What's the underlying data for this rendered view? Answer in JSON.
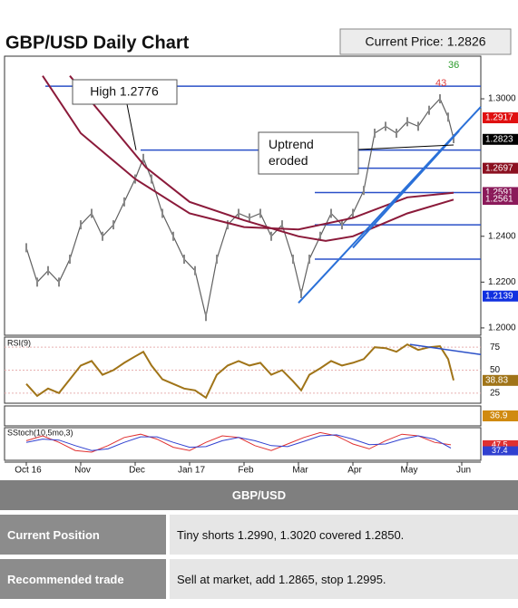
{
  "chart_data": {
    "type": "line",
    "title": "GBP/USD Daily Chart",
    "current_price_label": "Current Price: 1.2826",
    "xlim": [
      -0.4,
      8.35
    ],
    "xticks": [
      {
        "value": 0,
        "label": "Oct 16"
      },
      {
        "value": 1,
        "label": "Nov"
      },
      {
        "value": 2,
        "label": "Dec"
      },
      {
        "value": 3,
        "label": "Jan 17"
      },
      {
        "value": 4,
        "label": "Feb"
      },
      {
        "value": 5,
        "label": "Mar"
      },
      {
        "value": 6,
        "label": "Apr"
      },
      {
        "value": 7,
        "label": "May"
      },
      {
        "value": 8,
        "label": "Jun"
      }
    ],
    "ylim": [
      1.1968,
      1.3186
    ],
    "yticks": [
      {
        "value": 1.2,
        "label": "1.2000"
      },
      {
        "value": 1.22,
        "label": "1.2200"
      },
      {
        "value": 1.24,
        "label": "1.2400"
      },
      {
        "value": 1.3,
        "label": "1.3000"
      }
    ],
    "series": [
      {
        "color": "#606060",
        "x": [
          0,
          0.2,
          0.4,
          0.6,
          0.8,
          1.0,
          1.2,
          1.4,
          1.6,
          1.8,
          2.0,
          2.15,
          2.3,
          2.5,
          2.7,
          2.9,
          3.1,
          3.3,
          3.5,
          3.7,
          3.9,
          4.1,
          4.3,
          4.5,
          4.7,
          4.9,
          5.05,
          5.2,
          5.4,
          5.6,
          5.8,
          6.0,
          6.2,
          6.4,
          6.6,
          6.8,
          7.0,
          7.2,
          7.4,
          7.6,
          7.75,
          7.85
        ],
        "values": [
          1.235,
          1.22,
          1.225,
          1.22,
          1.23,
          1.245,
          1.25,
          1.24,
          1.245,
          1.255,
          1.265,
          1.274,
          1.265,
          1.25,
          1.24,
          1.23,
          1.225,
          1.205,
          1.23,
          1.245,
          1.25,
          1.248,
          1.25,
          1.24,
          1.245,
          1.23,
          1.215,
          1.23,
          1.24,
          1.25,
          1.245,
          1.25,
          1.26,
          1.285,
          1.288,
          1.285,
          1.29,
          1.288,
          1.295,
          1.3,
          1.292,
          1.2826
        ]
      },
      {
        "color": "#8b1a3a",
        "x": [
          0.3,
          1,
          2,
          3,
          4,
          5,
          6,
          7,
          7.85
        ],
        "values": [
          1.31,
          1.285,
          1.265,
          1.25,
          1.244,
          1.243,
          1.248,
          1.257,
          1.259
        ]
      },
      {
        "color": "#8b1a3a",
        "x": [
          0.8,
          1.5,
          2.2,
          3,
          4,
          5,
          5.5,
          6,
          7,
          7.85
        ],
        "values": [
          1.31,
          1.29,
          1.27,
          1.255,
          1.247,
          1.24,
          1.238,
          1.24,
          1.25,
          1.256
        ]
      }
    ],
    "levels": [
      {
        "value": 1.3055,
        "start": 0.35,
        "color": "#2a50c8"
      },
      {
        "value": 1.2776,
        "start": 2.1,
        "color": "#2a50c8"
      },
      {
        "value": 1.2697,
        "start": 4.6,
        "color": "#2a50c8"
      },
      {
        "value": 1.2591,
        "start": 5.3,
        "color": "#2a50c8"
      },
      {
        "value": 1.245,
        "start": 5.3,
        "color": "#2a50c8"
      },
      {
        "value": 1.23,
        "start": 5.3,
        "color": "#2a50c8"
      }
    ],
    "trendlines": [
      {
        "x": [
          5.0,
          8.35
        ],
        "values": [
          1.2109,
          1.2965
        ],
        "color": "#2a70d8"
      },
      {
        "x": [
          6.0,
          7.95
        ],
        "values": [
          1.235,
          1.286
        ],
        "color": "#2a70d8"
      }
    ],
    "price_labels": [
      {
        "value": 1.2917,
        "color": "#e01010"
      },
      {
        "value": 1.2823,
        "color": "#000000"
      },
      {
        "value": 1.2697,
        "color": "#8b1020"
      },
      {
        "value": 1.2591,
        "color": "#8b1a5a"
      },
      {
        "value": 1.2561,
        "color": "#8b1a5a"
      },
      {
        "value": 1.2139,
        "color": "#1030e0"
      }
    ],
    "annotations": [
      {
        "text": "High 1.2776"
      },
      {
        "text": "Uptrend eroded"
      },
      {
        "text": "36",
        "color": "#2a9a2a"
      },
      {
        "text": "43",
        "color": "#e04040"
      }
    ],
    "rsi": {
      "label": "RSI(9)",
      "ylim": [
        14,
        86
      ],
      "yticks": [
        25,
        50,
        75
      ],
      "color": "#a07418",
      "values": [
        35,
        22,
        30,
        25,
        40,
        55,
        60,
        45,
        50,
        58,
        65,
        70,
        55,
        40,
        35,
        30,
        28,
        20,
        45,
        55,
        60,
        55,
        58,
        45,
        50,
        38,
        28,
        45,
        52,
        60,
        55,
        58,
        62,
        75,
        74,
        70,
        78,
        72,
        75,
        76,
        62,
        38.83
      ],
      "trendline": {
        "x": [
          7.05,
          8.35
        ],
        "values": [
          78,
          67
        ]
      }
    },
    "momentum": {
      "value": 36.9,
      "color": "#d08a10"
    },
    "stoch": {
      "label": "SStoch(10,5mo,3)",
      "ylim": [
        0,
        100
      ],
      "x": [
        0,
        0.3,
        0.6,
        0.9,
        1.2,
        1.5,
        1.8,
        2.1,
        2.4,
        2.7,
        3.0,
        3.3,
        3.6,
        3.9,
        4.2,
        4.5,
        4.8,
        5.1,
        5.4,
        5.7,
        6.0,
        6.3,
        6.6,
        6.9,
        7.2,
        7.5,
        7.8
      ],
      "series": [
        {
          "color": "#e03030",
          "values": [
            60,
            75,
            55,
            30,
            25,
            45,
            70,
            80,
            65,
            40,
            30,
            55,
            75,
            70,
            45,
            30,
            50,
            70,
            85,
            75,
            50,
            35,
            60,
            80,
            75,
            55,
            47.5
          ]
        },
        {
          "color": "#3040d0",
          "values": [
            55,
            65,
            62,
            45,
            30,
            35,
            55,
            72,
            72,
            55,
            40,
            42,
            60,
            70,
            60,
            45,
            42,
            58,
            75,
            78,
            65,
            48,
            50,
            65,
            75,
            65,
            37.4
          ]
        }
      ]
    }
  },
  "table": {
    "header": "GBP/USD",
    "rows": [
      [
        "Current Position",
        "Tiny shorts 1.2990, 1.3020 covered 1.2850."
      ],
      [
        "Recommended trade",
        "Sell at market, add 1.2865, stop 1.2995."
      ]
    ]
  }
}
